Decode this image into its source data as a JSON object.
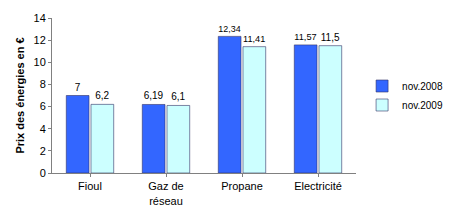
{
  "chart_data": {
    "type": "bar",
    "categories": [
      "Fioul",
      "Gaz de réseau",
      "Propane",
      "Electricité"
    ],
    "series": [
      {
        "name": "nov.2008",
        "color": "#3366ff",
        "values": [
          7,
          6.19,
          12.34,
          11.57
        ],
        "value_labels": [
          "7",
          "6,19",
          "12,34",
          "11,57"
        ]
      },
      {
        "name": "nov.2009",
        "color": "#ccffff",
        "values": [
          6.2,
          6.1,
          11.41,
          11.5
        ],
        "value_labels": [
          "6,2",
          "6,1",
          "11,41",
          "11,5"
        ]
      }
    ],
    "y_label": "Prix des énergies en €",
    "ylim": [
      0,
      14
    ],
    "yticks": [
      0,
      2,
      4,
      6,
      8,
      10,
      12,
      14
    ],
    "grid": false,
    "legend": "right",
    "data_labels": true
  }
}
